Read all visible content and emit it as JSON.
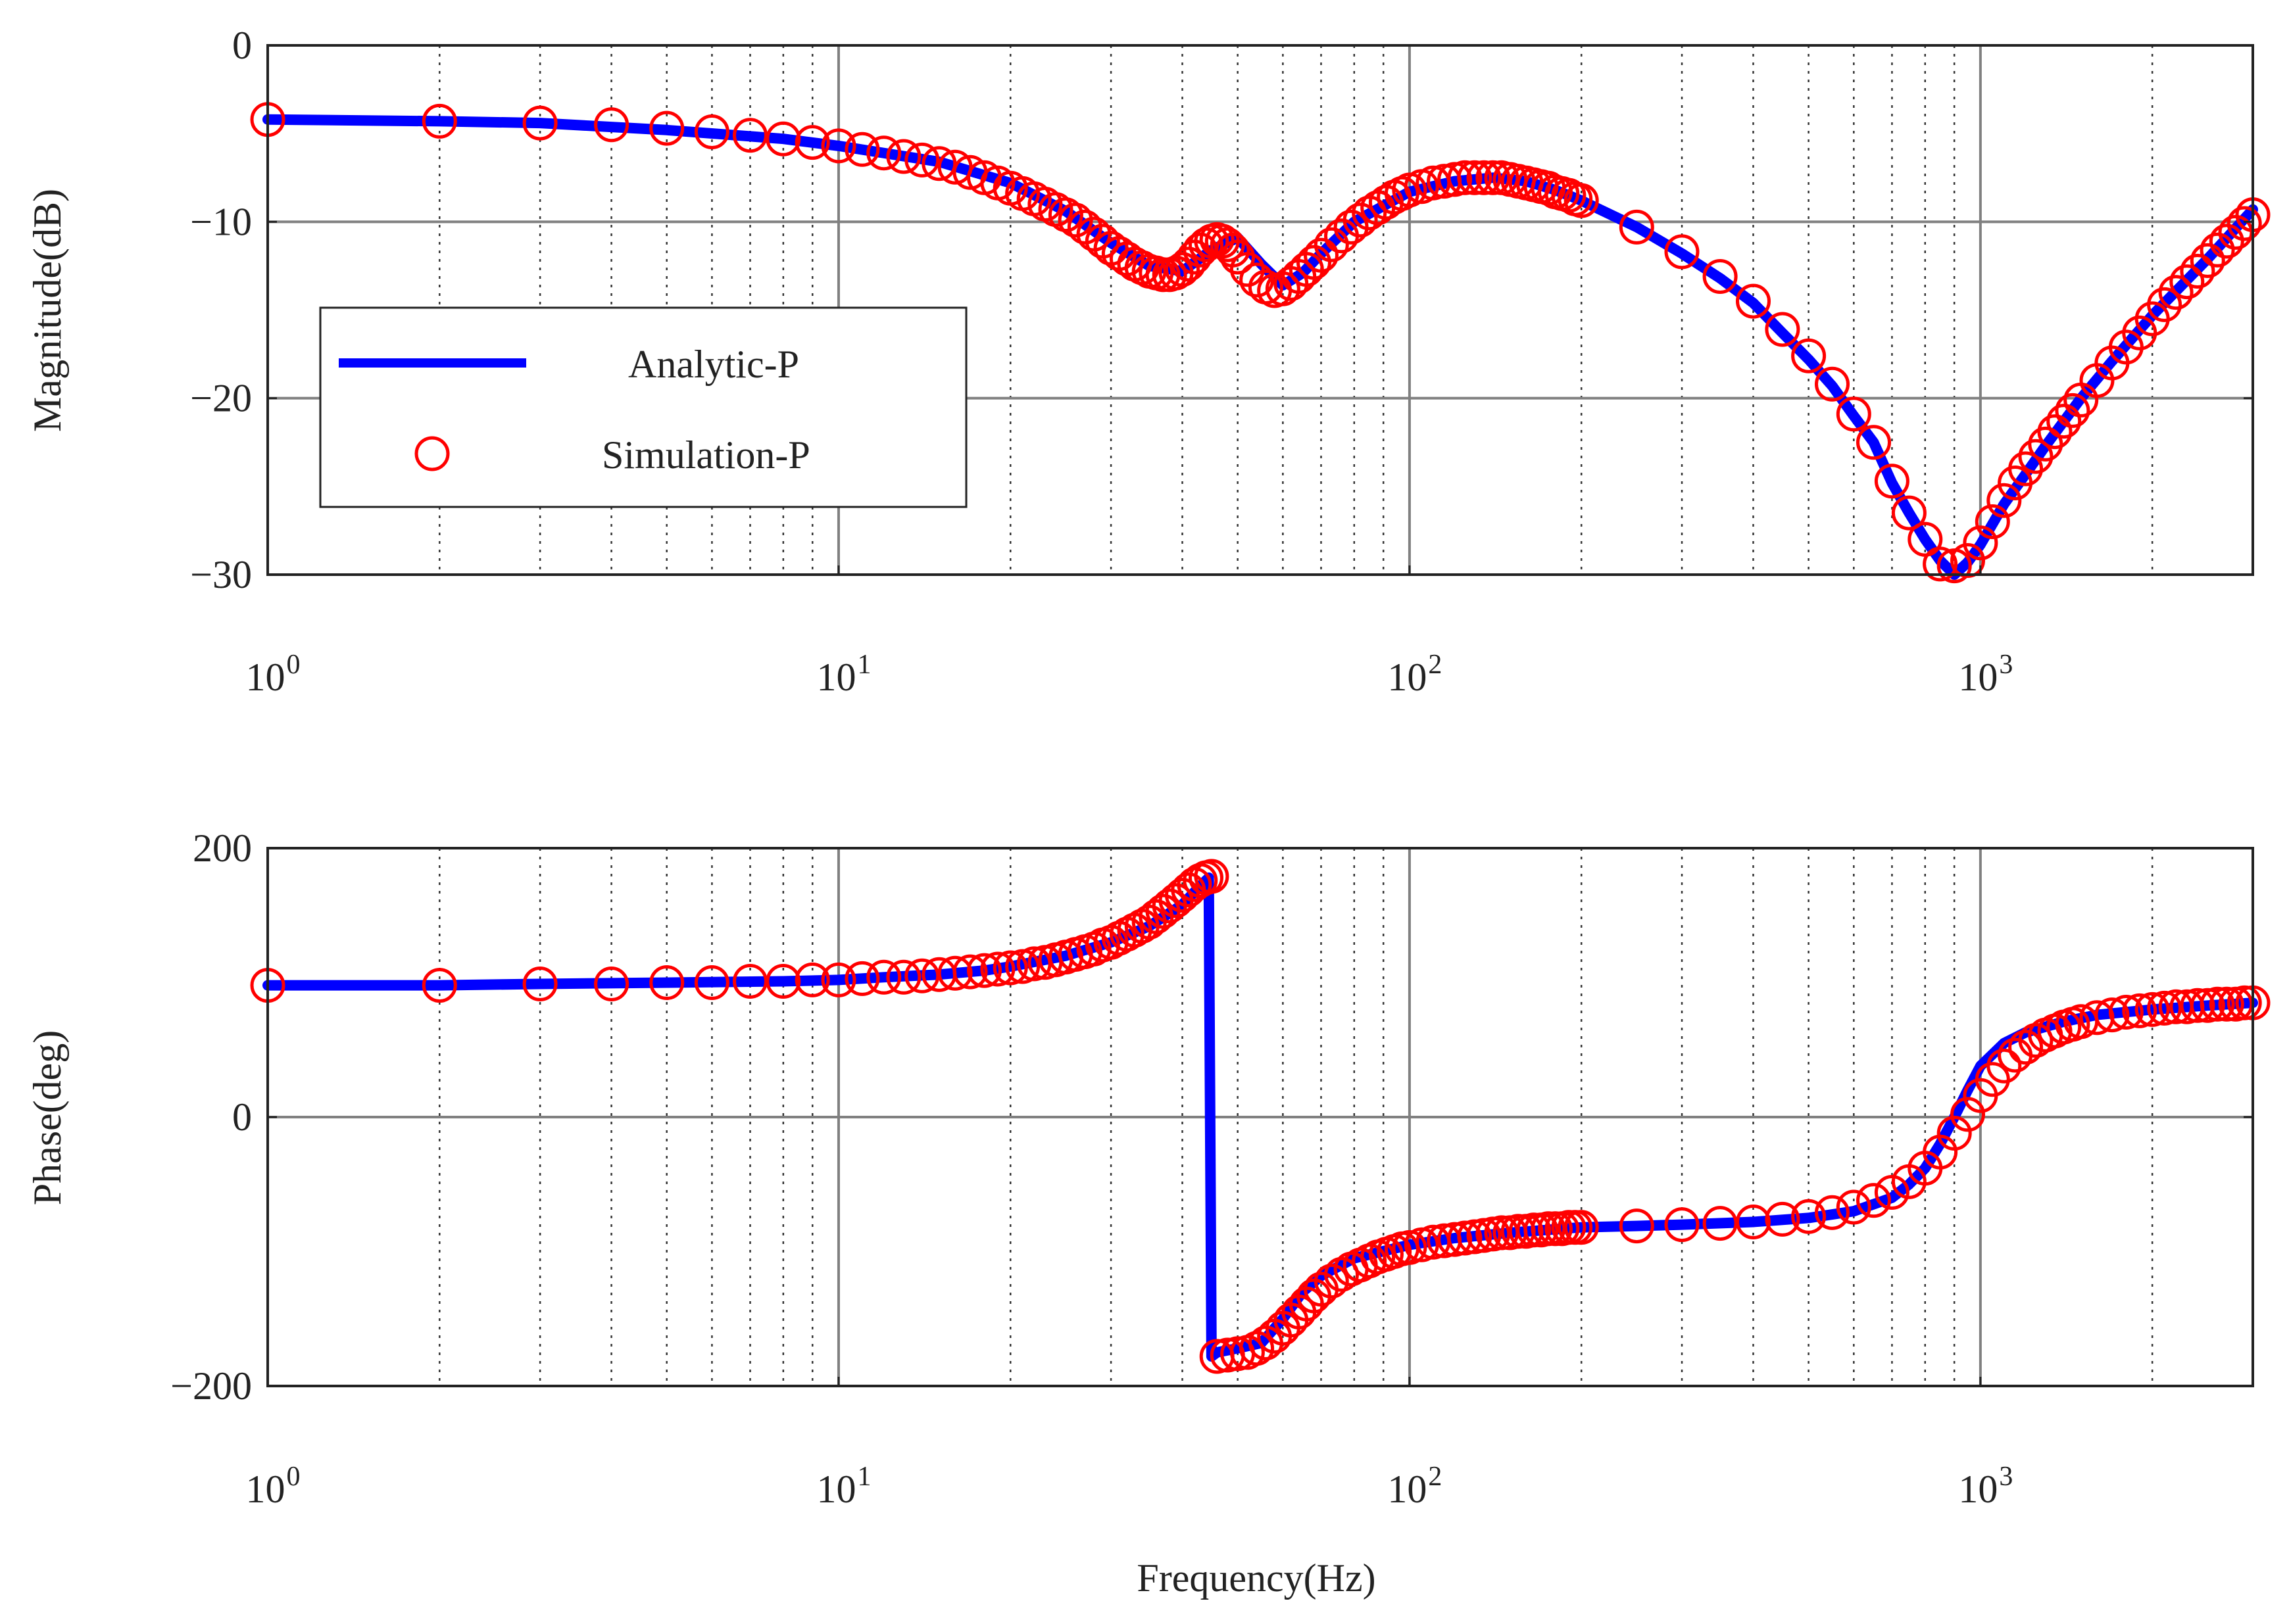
{
  "chart_data": [
    {
      "type": "line",
      "panel": "magnitude",
      "xscale": "log",
      "xlim": [
        1,
        3000
      ],
      "ylim": [
        -30,
        0
      ],
      "xlabel": "",
      "ylabel": "Magnitude(dB)",
      "yticks": [
        0,
        -10,
        -20,
        -30
      ],
      "ytick_labels": [
        "0",
        "−10",
        "−20",
        "−30"
      ],
      "xticks": [
        1,
        10,
        100,
        1000
      ],
      "xtick_labels": [
        {
          "base": "10",
          "exp": "0"
        },
        {
          "base": "10",
          "exp": "1"
        },
        {
          "base": "10",
          "exp": "2"
        },
        {
          "base": "10",
          "exp": "3"
        }
      ],
      "grid": true,
      "legend": {
        "placement": "left-middle",
        "entries": [
          {
            "label": "Analytic-P",
            "style": "line",
            "color": "#0000ff"
          },
          {
            "label": "Simulation-P",
            "style": "circle",
            "color": "#ff0000"
          }
        ]
      },
      "series": [
        {
          "name": "Analytic-P",
          "color": "#0000ff",
          "x": [
            1,
            2,
            3,
            5,
            8,
            10,
            15,
            20,
            25,
            30,
            35,
            40,
            45,
            50,
            55,
            60,
            65,
            70,
            80,
            100,
            120,
            140,
            160,
            180,
            200,
            250,
            300,
            350,
            400,
            450,
            500,
            550,
            600,
            650,
            700,
            750,
            800,
            850,
            900,
            950,
            1000,
            1100,
            1200,
            1300,
            1400,
            1500,
            1700,
            2000,
            2500,
            3000
          ],
          "y": [
            -4.2,
            -4.3,
            -4.4,
            -4.8,
            -5.3,
            -5.7,
            -6.6,
            -7.8,
            -9.4,
            -11.2,
            -12.5,
            -12.8,
            -11.6,
            -10.9,
            -12.4,
            -13.6,
            -12.9,
            -11.8,
            -10.0,
            -8.3,
            -7.7,
            -7.5,
            -7.7,
            -8.2,
            -8.8,
            -10.3,
            -11.8,
            -13.2,
            -14.6,
            -16.3,
            -17.8,
            -19.3,
            -21.0,
            -22.5,
            -24.8,
            -26.5,
            -28.0,
            -29.2,
            -30.0,
            -29.3,
            -28.3,
            -26.0,
            -24.3,
            -22.7,
            -21.3,
            -20.0,
            -17.9,
            -15.3,
            -12.1,
            -9.3
          ]
        },
        {
          "name": "Simulation-P",
          "color": "#ff0000",
          "x": [
            1,
            2,
            3,
            4,
            5,
            6,
            7,
            8,
            9,
            10,
            11,
            12,
            13,
            14,
            15,
            16,
            17,
            18,
            19,
            20,
            21,
            22,
            23,
            24,
            25,
            26,
            27,
            28,
            29,
            30,
            31,
            32,
            33,
            34,
            35,
            36,
            37,
            38,
            39,
            40,
            41,
            42,
            43,
            44,
            45,
            46,
            47,
            48,
            49,
            50,
            52,
            54,
            56,
            58,
            60,
            62,
            64,
            66,
            68,
            70,
            73,
            76,
            79,
            82,
            85,
            88,
            91,
            94,
            97,
            100,
            105,
            110,
            115,
            120,
            125,
            130,
            135,
            140,
            145,
            150,
            155,
            160,
            165,
            170,
            175,
            180,
            185,
            190,
            195,
            200,
            250,
            300,
            350,
            400,
            450,
            500,
            550,
            600,
            650,
            700,
            750,
            800,
            850,
            900,
            950,
            1000,
            1050,
            1100,
            1150,
            1200,
            1250,
            1300,
            1350,
            1400,
            1450,
            1500,
            1600,
            1700,
            1800,
            1900,
            2000,
            2100,
            2200,
            2300,
            2400,
            2500,
            2600,
            2700,
            2800,
            2900,
            3000
          ],
          "y": [
            -4.2,
            -4.3,
            -4.4,
            -4.5,
            -4.7,
            -4.9,
            -5.1,
            -5.3,
            -5.5,
            -5.7,
            -5.9,
            -6.1,
            -6.3,
            -6.5,
            -6.7,
            -6.9,
            -7.2,
            -7.5,
            -7.8,
            -8.1,
            -8.4,
            -8.7,
            -9.0,
            -9.3,
            -9.6,
            -9.9,
            -10.3,
            -10.7,
            -11.1,
            -11.5,
            -11.8,
            -12.1,
            -12.4,
            -12.6,
            -12.8,
            -12.9,
            -13.0,
            -13.0,
            -12.9,
            -12.7,
            -12.4,
            -12.0,
            -11.6,
            -11.3,
            -11.1,
            -11.0,
            -11.1,
            -11.3,
            -11.6,
            -12.0,
            -12.7,
            -13.3,
            -13.7,
            -13.9,
            -13.8,
            -13.5,
            -13.1,
            -12.7,
            -12.3,
            -11.9,
            -11.3,
            -10.8,
            -10.3,
            -9.9,
            -9.5,
            -9.2,
            -8.9,
            -8.6,
            -8.4,
            -8.2,
            -8.0,
            -7.8,
            -7.7,
            -7.6,
            -7.5,
            -7.5,
            -7.5,
            -7.5,
            -7.5,
            -7.6,
            -7.7,
            -7.8,
            -7.9,
            -8.0,
            -8.1,
            -8.3,
            -8.4,
            -8.5,
            -8.7,
            -8.8,
            -10.3,
            -11.7,
            -13.1,
            -14.5,
            -16.1,
            -17.6,
            -19.2,
            -20.9,
            -22.5,
            -24.7,
            -26.5,
            -28.0,
            -29.4,
            -29.5,
            -29.2,
            -28.2,
            -27.0,
            -25.8,
            -24.8,
            -24.0,
            -23.3,
            -22.6,
            -21.9,
            -21.3,
            -20.7,
            -20.1,
            -19.0,
            -18.0,
            -17.1,
            -16.3,
            -15.5,
            -14.7,
            -14.0,
            -13.4,
            -12.8,
            -12.2,
            -11.6,
            -11.1,
            -10.6,
            -10.1,
            -9.6
          ]
        }
      ]
    },
    {
      "type": "line",
      "panel": "phase",
      "xscale": "log",
      "xlim": [
        1,
        3000
      ],
      "ylim": [
        -200,
        200
      ],
      "xlabel": "Frequency(Hz)",
      "ylabel": "Phase(deg)",
      "yticks": [
        200,
        0,
        -200
      ],
      "ytick_labels": [
        "200",
        "0",
        "−200"
      ],
      "xticks": [
        1,
        10,
        100,
        1000
      ],
      "xtick_labels": [
        {
          "base": "10",
          "exp": "0"
        },
        {
          "base": "10",
          "exp": "1"
        },
        {
          "base": "10",
          "exp": "2"
        },
        {
          "base": "10",
          "exp": "3"
        }
      ],
      "grid": true,
      "series": [
        {
          "name": "Analytic-P",
          "color": "#0000ff",
          "x": [
            1,
            2,
            3,
            5,
            8,
            10,
            12,
            15,
            18,
            20,
            25,
            30,
            35,
            40,
            43,
            44.5,
            45,
            46,
            50,
            55,
            60,
            65,
            70,
            80,
            100,
            120,
            150,
            200,
            250,
            300,
            400,
            500,
            600,
            700,
            750,
            800,
            850,
            900,
            950,
            1000,
            1100,
            1200,
            1400,
            1600,
            2000,
            2500,
            3000
          ],
          "y": [
            98,
            98,
            99,
            100,
            101,
            102,
            104,
            106,
            109,
            112,
            120,
            130,
            142,
            158,
            172,
            178,
            -178,
            -175,
            -172,
            -168,
            -150,
            -130,
            -118,
            -105,
            -95,
            -90,
            -86,
            -82,
            -81,
            -80,
            -78,
            -75,
            -70,
            -60,
            -50,
            -38,
            -20,
            0,
            20,
            38,
            55,
            63,
            71,
            76,
            80,
            83,
            85
          ]
        },
        {
          "name": "Simulation-P",
          "color": "#ff0000",
          "x": [
            1,
            2,
            3,
            4,
            5,
            6,
            7,
            8,
            9,
            10,
            11,
            12,
            13,
            14,
            15,
            16,
            17,
            18,
            19,
            20,
            21,
            22,
            23,
            24,
            25,
            26,
            27,
            28,
            29,
            30,
            31,
            32,
            33,
            34,
            35,
            36,
            37,
            38,
            39,
            40,
            41,
            42,
            43,
            44,
            45,
            46,
            48,
            50,
            52,
            54,
            56,
            58,
            60,
            62,
            64,
            66,
            68,
            70,
            73,
            76,
            79,
            82,
            85,
            88,
            91,
            94,
            97,
            100,
            105,
            110,
            115,
            120,
            125,
            130,
            135,
            140,
            145,
            150,
            155,
            160,
            165,
            170,
            175,
            180,
            185,
            190,
            195,
            200,
            250,
            300,
            350,
            400,
            450,
            500,
            550,
            600,
            650,
            700,
            750,
            800,
            850,
            900,
            950,
            1000,
            1050,
            1100,
            1150,
            1200,
            1250,
            1300,
            1350,
            1400,
            1450,
            1500,
            1600,
            1700,
            1800,
            1900,
            2000,
            2100,
            2200,
            2300,
            2400,
            2500,
            2600,
            2700,
            2800,
            2900,
            3000
          ],
          "y": [
            98,
            98,
            99,
            99,
            100,
            100,
            101,
            101,
            102,
            102,
            103,
            104,
            104,
            105,
            106,
            107,
            108,
            109,
            110,
            111,
            112,
            114,
            115,
            117,
            119,
            121,
            123,
            125,
            128,
            130,
            133,
            136,
            139,
            142,
            145,
            149,
            153,
            157,
            161,
            165,
            169,
            173,
            176,
            178,
            179,
            -178,
            -177,
            -176,
            -175,
            -172,
            -168,
            -163,
            -157,
            -151,
            -145,
            -139,
            -133,
            -128,
            -122,
            -117,
            -113,
            -110,
            -107,
            -104,
            -102,
            -100,
            -98,
            -97,
            -95,
            -93,
            -92,
            -91,
            -90,
            -89,
            -88,
            -87,
            -86,
            -86,
            -85,
            -85,
            -84,
            -84,
            -83,
            -83,
            -83,
            -82,
            -82,
            -82,
            -81,
            -80,
            -79,
            -78,
            -76,
            -74,
            -71,
            -67,
            -62,
            -56,
            -48,
            -38,
            -26,
            -12,
            2,
            16,
            28,
            38,
            46,
            52,
            57,
            61,
            64,
            67,
            69,
            71,
            74,
            76,
            78,
            79,
            80,
            81,
            82,
            82,
            83,
            83,
            84,
            84,
            84,
            85,
            85
          ]
        }
      ]
    }
  ]
}
